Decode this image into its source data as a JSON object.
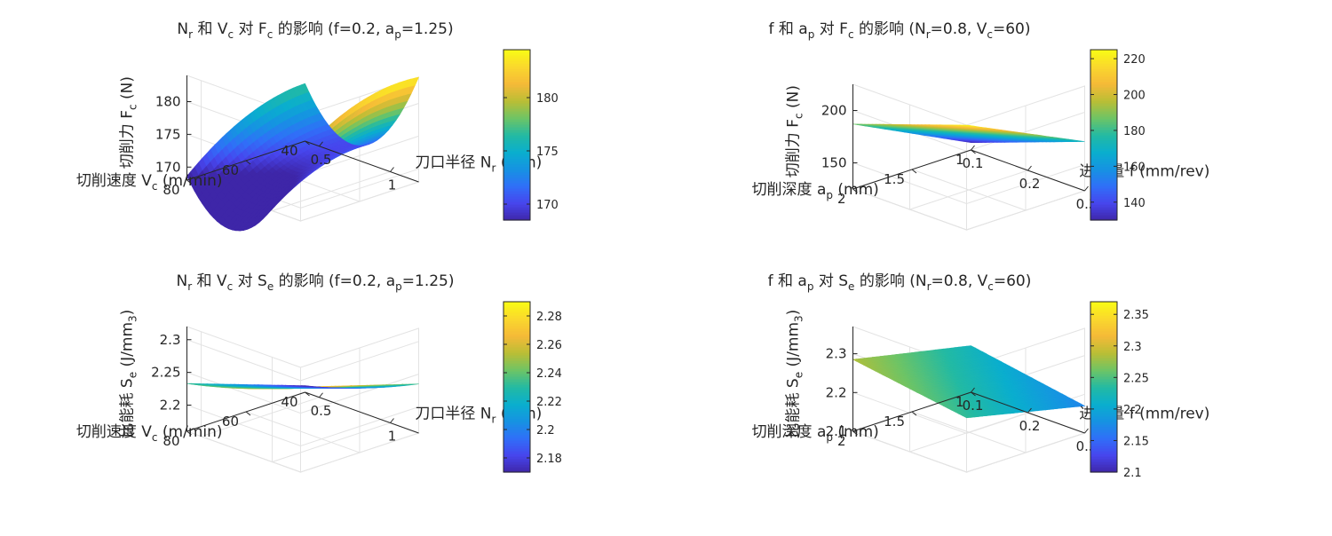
{
  "chart_data": [
    {
      "type": "surface",
      "title": [
        "N",
        "r",
        " 和 V",
        "c",
        " 对 F",
        "c",
        " 的影响 (f=0.2, a",
        "p",
        "=1.25)"
      ],
      "xlabel": [
        "刀口半径 N",
        "r",
        " (mm)"
      ],
      "ylabel": [
        "切削速度 V",
        "c",
        " (m/min)"
      ],
      "zlabel": [
        "切削力 F",
        "c",
        " (N)"
      ],
      "x_range": [
        0.4,
        1.2
      ],
      "y_range": [
        40,
        80
      ],
      "z_range": [
        168,
        184
      ],
      "x_ticks": [
        0.5,
        1
      ],
      "y_ticks": [
        40,
        60,
        80
      ],
      "z_ticks": [
        170,
        175,
        180
      ],
      "x_tick_labels": [
        "0.5",
        "1"
      ],
      "y_tick_labels": [
        "40",
        "60",
        "80"
      ],
      "z_tick_labels": [
        "170",
        "175",
        "180"
      ],
      "colorbar_range": [
        168.5,
        184.5
      ],
      "colorbar_ticks": [
        170,
        175,
        180
      ],
      "colorbar_tick_labels": [
        "170",
        "175",
        "180"
      ],
      "corners": {
        "x_min_y_min": 176.8,
        "x_max_y_min": 184.0,
        "x_min_y_max": 168.6,
        "x_max_y_max": 178.3
      },
      "curvature_x": 10.0,
      "curvature_y": -2.0,
      "colormap": "parula",
      "grid": true
    },
    {
      "type": "surface",
      "title": [
        "f 和 a",
        "p",
        " 对 F",
        "c",
        " 的影响 (N",
        "r",
        "=0.8, V",
        "c",
        "=60)"
      ],
      "xlabel": [
        "进给量 f (mm/rev)"
      ],
      "ylabel": [
        "切削深度 a",
        "p",
        " (mm)"
      ],
      "zlabel": [
        "切削力 F",
        "c",
        " (N)"
      ],
      "x_range": [
        0.1,
        0.3
      ],
      "y_range": [
        1,
        2
      ],
      "z_range": [
        125,
        225
      ],
      "x_ticks": [
        0.1,
        0.2,
        0.3
      ],
      "y_ticks": [
        1,
        1.5,
        2
      ],
      "z_ticks": [
        150,
        200
      ],
      "x_tick_labels": [
        "0.1",
        "0.2",
        "0.3"
      ],
      "y_tick_labels": [
        "1",
        "1.5",
        "2"
      ],
      "z_tick_labels": [
        "150",
        "200"
      ],
      "colorbar_range": [
        130,
        225
      ],
      "colorbar_ticks": [
        140,
        160,
        180,
        200,
        220
      ],
      "colorbar_tick_labels": [
        "140",
        "160",
        "180",
        "200",
        "220"
      ],
      "corners": {
        "x_min_y_min": 132,
        "x_max_y_min": 172,
        "x_min_y_max": 187,
        "x_max_y_max": 225
      },
      "curvature_x": 0,
      "curvature_y": 0,
      "colormap": "parula",
      "grid": true
    },
    {
      "type": "surface",
      "title": [
        "N",
        "r",
        " 和 V",
        "c",
        " 对 S",
        "e",
        " 的影响 (f=0.2, a",
        "p",
        "=1.25)"
      ],
      "xlabel": [
        "刀口半径 N",
        "r",
        " (mm)"
      ],
      "ylabel": [
        "切削速度 V",
        "c",
        " (m/min)"
      ],
      "zlabel": [
        "比能耗 S",
        "e",
        " (J/mm",
        "3",
        ")"
      ],
      "x_range": [
        0.4,
        1.2
      ],
      "y_range": [
        40,
        80
      ],
      "z_range": [
        2.16,
        2.32
      ],
      "x_ticks": [
        0.5,
        1
      ],
      "y_ticks": [
        40,
        60,
        80
      ],
      "z_ticks": [
        2.2,
        2.25,
        2.3
      ],
      "x_tick_labels": [
        "0.5",
        "1"
      ],
      "y_tick_labels": [
        "40",
        "60",
        "80"
      ],
      "z_tick_labels": [
        "2.2",
        "2.25",
        "2.3"
      ],
      "colorbar_range": [
        2.17,
        2.29
      ],
      "colorbar_ticks": [
        2.18,
        2.2,
        2.22,
        2.24,
        2.26,
        2.28
      ],
      "colorbar_tick_labels": [
        "2.18",
        "2.2",
        "2.22",
        "2.24",
        "2.26",
        "2.28"
      ],
      "corners": {
        "x_min_y_min": 2.17,
        "x_max_y_min": 2.235,
        "x_min_y_max": 2.233,
        "x_max_y_max": 2.29
      },
      "curvature_x": 0.005,
      "curvature_y": 0,
      "colormap": "parula",
      "grid": true
    },
    {
      "type": "surface",
      "title": [
        "f 和 a",
        "p",
        " 对 S",
        "e",
        " 的影响 (N",
        "r",
        "=0.8, V",
        "c",
        "=60)"
      ],
      "xlabel": [
        "进给量 f (mm/rev)"
      ],
      "ylabel": [
        "切削深度 a",
        "p",
        " (mm)"
      ],
      "zlabel": [
        "比能耗 S",
        "e",
        " (J/mm",
        "3",
        ")"
      ],
      "x_range": [
        0.1,
        0.3
      ],
      "y_range": [
        1,
        2
      ],
      "z_range": [
        2.1,
        2.37
      ],
      "x_ticks": [
        0.1,
        0.2,
        0.3
      ],
      "y_ticks": [
        1,
        1.5,
        2
      ],
      "z_ticks": [
        2.1,
        2.2,
        2.3
      ],
      "x_tick_labels": [
        "0.1",
        "0.2",
        "0.3"
      ],
      "y_tick_labels": [
        "1",
        "1.5",
        "2"
      ],
      "z_tick_labels": [
        "2.1",
        "2.2",
        "2.3"
      ],
      "colorbar_range": [
        2.1,
        2.37
      ],
      "colorbar_ticks": [
        2.1,
        2.15,
        2.2,
        2.25,
        2.3,
        2.35
      ],
      "colorbar_tick_labels": [
        "2.1",
        "2.15",
        "2.2",
        "2.25",
        "2.3",
        "2.35"
      ],
      "corners": {
        "x_min_y_min": 2.22,
        "x_max_y_min": 2.17,
        "x_min_y_max": 2.285,
        "x_max_y_max": 2.24
      },
      "curvature_x": 0,
      "curvature_y": 0,
      "colormap": "parula",
      "grid": true
    }
  ]
}
